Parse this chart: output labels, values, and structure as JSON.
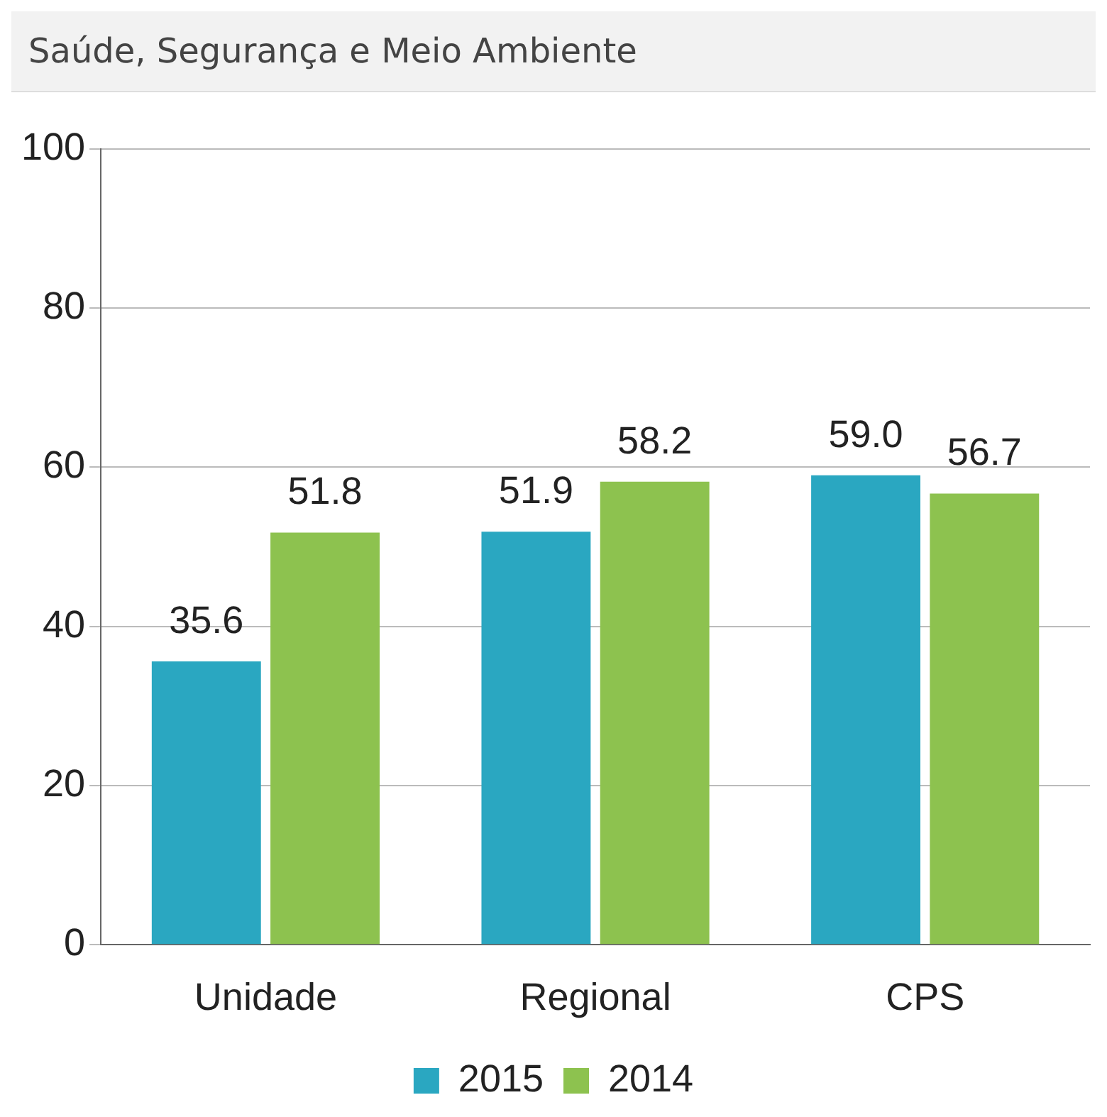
{
  "chart_data": {
    "type": "bar",
    "title": "Saúde, Segurança e Meio Ambiente",
    "categories": [
      "Unidade",
      "Regional",
      "CPS"
    ],
    "series": [
      {
        "name": "2015",
        "color": "#2aa7c1",
        "values": [
          35.6,
          51.9,
          59.0
        ],
        "value_labels": [
          "35.6",
          "51.9",
          "59.0"
        ]
      },
      {
        "name": "2014",
        "color": "#8dc24f",
        "values": [
          51.8,
          58.2,
          56.7
        ],
        "value_labels": [
          "51.8",
          "58.2",
          "56.7"
        ]
      }
    ],
    "ylim": [
      0,
      100
    ],
    "yticks": [
      0,
      20,
      40,
      60,
      80,
      100
    ],
    "grid": "y",
    "legend": "bottom"
  }
}
